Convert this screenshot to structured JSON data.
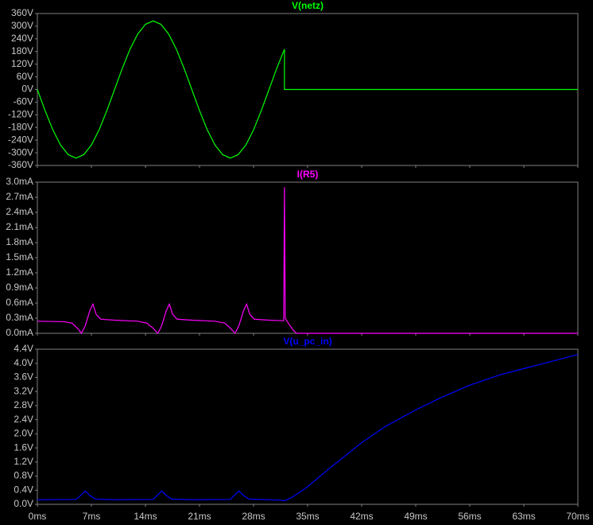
{
  "chart_data": [
    {
      "type": "line",
      "x": [
        0,
        1,
        2,
        3,
        4,
        5,
        6,
        7,
        8,
        9,
        10,
        11,
        12,
        13,
        14,
        15,
        16,
        17,
        18,
        19,
        20,
        21,
        22,
        23,
        24,
        25,
        26,
        27,
        28,
        29,
        30,
        31,
        32,
        32,
        70
      ],
      "series": [
        {
          "name": "V(netz)",
          "color": "#00ff00",
          "values": [
            0,
            -100,
            -191,
            -263,
            -309,
            -325,
            -309,
            -263,
            -191,
            -100,
            0,
            100,
            191,
            263,
            309,
            325,
            309,
            263,
            191,
            100,
            0,
            -100,
            -191,
            -263,
            -309,
            -325,
            -309,
            -263,
            -191,
            -100,
            0,
            100,
            191,
            0,
            0
          ]
        }
      ],
      "xlim": [
        0,
        70
      ],
      "ylim": [
        -360,
        360
      ],
      "yticks": [
        {
          "value": 360,
          "label": "360V"
        },
        {
          "value": 300,
          "label": "300V"
        },
        {
          "value": 240,
          "label": "240V"
        },
        {
          "value": 180,
          "label": "180V"
        },
        {
          "value": 120,
          "label": "120V"
        },
        {
          "value": 60,
          "label": "60V"
        },
        {
          "value": 0,
          "label": "0V"
        },
        {
          "value": -60,
          "label": "-60V"
        },
        {
          "value": -120,
          "label": "-120V"
        },
        {
          "value": -180,
          "label": "-180V"
        },
        {
          "value": -240,
          "label": "-240V"
        },
        {
          "value": -300,
          "label": "-300V"
        },
        {
          "value": -360,
          "label": "-360V"
        }
      ]
    },
    {
      "type": "line",
      "x": [
        0,
        3.5,
        4.5,
        5.2,
        5.7,
        6.2,
        6.8,
        7.2,
        7.6,
        8.2,
        10,
        13,
        14.2,
        15,
        15.6,
        16.1,
        16.7,
        17.1,
        17.5,
        18.1,
        20,
        23,
        24.3,
        25,
        25.6,
        26.1,
        26.7,
        27.1,
        27.5,
        28.1,
        30,
        31.9,
        32,
        32.1,
        32.5,
        33.2,
        33.6,
        70
      ],
      "series": [
        {
          "name": "I(R5)",
          "color": "#ff00ff",
          "values": [
            0.24,
            0.23,
            0.2,
            0.1,
            0,
            0.15,
            0.45,
            0.58,
            0.38,
            0.28,
            0.26,
            0.24,
            0.2,
            0.1,
            0,
            0.15,
            0.45,
            0.58,
            0.38,
            0.28,
            0.26,
            0.24,
            0.2,
            0.1,
            0,
            0.15,
            0.45,
            0.58,
            0.38,
            0.28,
            0.26,
            0.25,
            2.9,
            0.3,
            0.2,
            0.05,
            0,
            0
          ]
        }
      ],
      "xlim": [
        0,
        70
      ],
      "ylim": [
        0,
        3
      ],
      "yticks": [
        {
          "value": 3,
          "label": "3.0mA"
        },
        {
          "value": 2.7,
          "label": "2.7mA"
        },
        {
          "value": 2.4,
          "label": "2.4mA"
        },
        {
          "value": 2.1,
          "label": "2.1mA"
        },
        {
          "value": 1.8,
          "label": "1.8mA"
        },
        {
          "value": 1.5,
          "label": "1.5mA"
        },
        {
          "value": 1.2,
          "label": "1.2mA"
        },
        {
          "value": 0.9,
          "label": "0.9mA"
        },
        {
          "value": 0.6,
          "label": "0.6mA"
        },
        {
          "value": 0.3,
          "label": "0.3mA"
        },
        {
          "value": 0,
          "label": "0.0mA"
        }
      ]
    },
    {
      "type": "line",
      "x": [
        0,
        5,
        5.6,
        6.2,
        6.8,
        7.5,
        10,
        15,
        15.5,
        16.1,
        16.7,
        17.4,
        20,
        25,
        25.5,
        26.1,
        26.7,
        27.4,
        30,
        31.5,
        32,
        33,
        35,
        38,
        42,
        45,
        49,
        52,
        56,
        60,
        63,
        66,
        70
      ],
      "series": [
        {
          "name": "V(u_pc_in)",
          "color": "#0000ff",
          "values": [
            0.13,
            0.14,
            0.25,
            0.38,
            0.25,
            0.15,
            0.13,
            0.14,
            0.25,
            0.38,
            0.25,
            0.15,
            0.13,
            0.14,
            0.25,
            0.38,
            0.25,
            0.15,
            0.13,
            0.12,
            0.1,
            0.2,
            0.5,
            1.05,
            1.75,
            2.2,
            2.68,
            3.0,
            3.38,
            3.68,
            3.85,
            4.02,
            4.25
          ]
        }
      ],
      "xlim": [
        0,
        70
      ],
      "ylim": [
        0,
        4.4
      ],
      "yticks": [
        {
          "value": 4.4,
          "label": "4.4V"
        },
        {
          "value": 4.0,
          "label": "4.0V"
        },
        {
          "value": 3.6,
          "label": "3.6V"
        },
        {
          "value": 3.2,
          "label": "3.2V"
        },
        {
          "value": 2.8,
          "label": "2.8V"
        },
        {
          "value": 2.4,
          "label": "2.4V"
        },
        {
          "value": 2.0,
          "label": "2.0V"
        },
        {
          "value": 1.6,
          "label": "1.6V"
        },
        {
          "value": 1.2,
          "label": "1.2V"
        },
        {
          "value": 0.8,
          "label": "0.8V"
        },
        {
          "value": 0.4,
          "label": "0.4V"
        },
        {
          "value": 0,
          "label": "0.0V"
        }
      ],
      "xticks": [
        {
          "value": 0,
          "label": "0ms"
        },
        {
          "value": 7,
          "label": "7ms"
        },
        {
          "value": 14,
          "label": "14ms"
        },
        {
          "value": 21,
          "label": "21ms"
        },
        {
          "value": 28,
          "label": "28ms"
        },
        {
          "value": 35,
          "label": "35ms"
        },
        {
          "value": 42,
          "label": "42ms"
        },
        {
          "value": 49,
          "label": "49ms"
        },
        {
          "value": 56,
          "label": "56ms"
        },
        {
          "value": 63,
          "label": "63ms"
        },
        {
          "value": 70,
          "label": "70ms"
        }
      ]
    }
  ]
}
